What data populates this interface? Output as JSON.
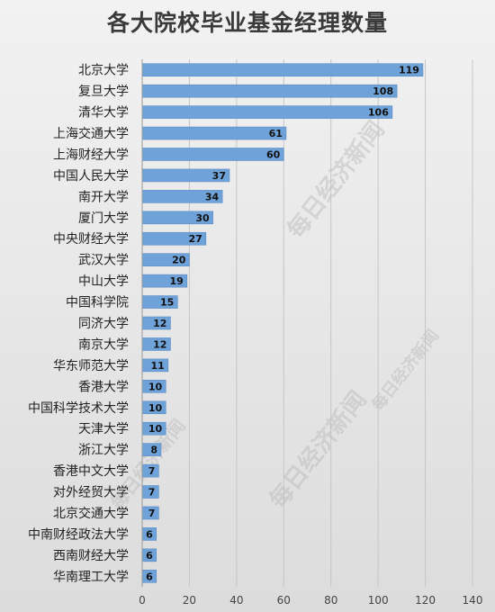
{
  "chart_data": {
    "type": "bar",
    "orientation": "horizontal",
    "title": "各大院校毕业基金经理数量",
    "categories": [
      "北京大学",
      "复旦大学",
      "清华大学",
      "上海交通大学",
      "上海财经大学",
      "中国人民大学",
      "南开大学",
      "厦门大学",
      "中央财经大学",
      "武汉大学",
      "中山大学",
      "中国科学院",
      "同济大学",
      "南京大学",
      "华东师范大学",
      "香港大学",
      "中国科学技术大学",
      "天津大学",
      "浙江大学",
      "香港中文大学",
      "对外经贸大学",
      "北京交通大学",
      "中南财经政法大学",
      "西南财经大学",
      "华南理工大学"
    ],
    "values": [
      119,
      108,
      106,
      61,
      60,
      37,
      34,
      30,
      27,
      20,
      19,
      15,
      12,
      12,
      11,
      10,
      10,
      10,
      8,
      7,
      7,
      7,
      6,
      6,
      6
    ],
    "xlim": [
      0,
      140
    ],
    "xticks": [
      "0",
      "20",
      "40",
      "60",
      "80",
      "100",
      "120",
      "140"
    ],
    "grid": true,
    "bar_color": "#6fa2d8",
    "watermark": "每日经济新闻"
  }
}
